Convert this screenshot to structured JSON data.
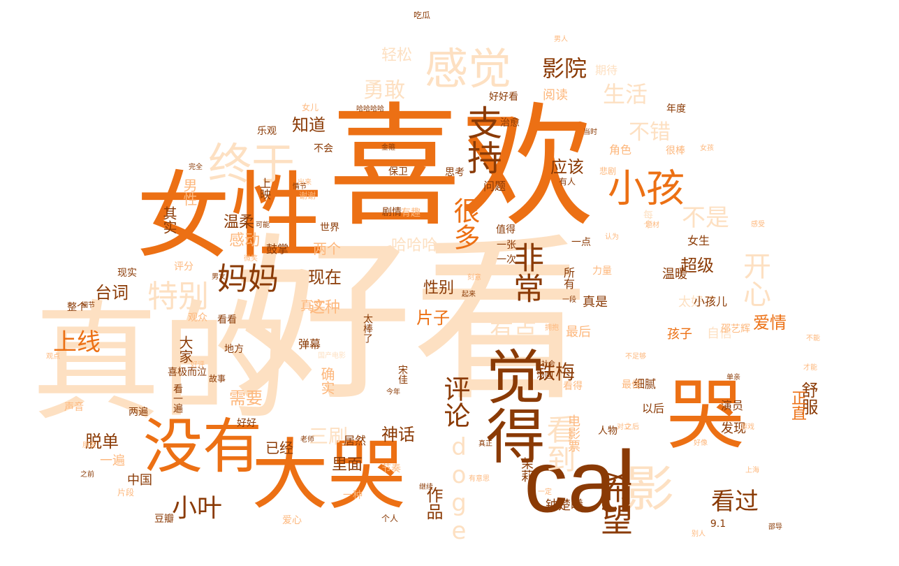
{
  "palette": {
    "background": "#ffffff",
    "deep_brown": "#8a3a05",
    "orange": "#ec7014",
    "light_orange": "#fdb77c",
    "peach": "#fde0c2",
    "pale": "#fff0e2"
  },
  "words": [
    {
      "text": "好看",
      "weight": 100,
      "color": "#fde0c2",
      "orient": "h"
    },
    {
      "text": "喜欢",
      "weight": 95,
      "color": "#ec7014",
      "orient": "h"
    },
    {
      "text": "真的",
      "weight": 92,
      "color": "#fde0c2",
      "orient": "h"
    },
    {
      "text": "女性",
      "weight": 80,
      "color": "#ec7014",
      "orient": "h"
    },
    {
      "text": "大哭",
      "weight": 78,
      "color": "#ec7014",
      "orient": "h"
    },
    {
      "text": "cal",
      "weight": 76,
      "color": "#8a3a05",
      "orient": "h"
    },
    {
      "text": "哭",
      "weight": 58,
      "color": "#ec7014",
      "orient": "v"
    },
    {
      "text": "没有",
      "weight": 60,
      "color": "#ec7014",
      "orient": "h"
    },
    {
      "text": "觉得",
      "weight": 60,
      "color": "#8a3a05",
      "orient": "v"
    },
    {
      "text": "感觉",
      "weight": 50,
      "color": "#fde0c2",
      "orient": "h"
    },
    {
      "text": "终于",
      "weight": 48,
      "color": "#fde0c2",
      "orient": "h"
    },
    {
      "text": "影",
      "weight": 48,
      "color": "#fde0c2",
      "orient": "h"
    },
    {
      "text": "小孩",
      "weight": 44,
      "color": "#ec7014",
      "orient": "h"
    },
    {
      "text": "支持",
      "weight": 42,
      "color": "#8a3a05",
      "orient": "v"
    },
    {
      "text": "妈妈",
      "weight": 40,
      "color": "#8a3a05",
      "orient": "h"
    },
    {
      "text": "特别",
      "weight": 40,
      "color": "#fde0c2",
      "orient": "h"
    },
    {
      "text": "开心",
      "weight": 38,
      "color": "#fde0c2",
      "orient": "v"
    },
    {
      "text": "非常",
      "weight": 38,
      "color": "#8a3a05",
      "orient": "v"
    },
    {
      "text": "希望",
      "weight": 38,
      "color": "#8a3a05",
      "orient": "v"
    },
    {
      "text": "看到",
      "weight": 36,
      "color": "#fde0c2",
      "orient": "v"
    },
    {
      "text": "很多",
      "weight": 34,
      "color": "#ec7014",
      "orient": "v"
    },
    {
      "text": "评论",
      "weight": 34,
      "color": "#8a3a05",
      "orient": "v"
    },
    {
      "text": "小叶",
      "weight": 32,
      "color": "#8a3a05",
      "orient": "h"
    },
    {
      "text": "看过",
      "weight": 30,
      "color": "#8a3a05",
      "orient": "h"
    },
    {
      "text": "生活",
      "weight": 30,
      "color": "#fde0c2",
      "orient": "h"
    },
    {
      "text": "影院",
      "weight": 28,
      "color": "#8a3a05",
      "orient": "h"
    },
    {
      "text": "不错",
      "weight": 28,
      "color": "#fde0c2",
      "orient": "h"
    },
    {
      "text": "不是",
      "weight": 28,
      "color": "#fde0c2",
      "orient": "h"
    },
    {
      "text": "勇敢",
      "weight": 28,
      "color": "#fde0c2",
      "orient": "h"
    },
    {
      "text": "有点",
      "weight": 28,
      "color": "#fde0c2",
      "orient": "h"
    },
    {
      "text": "上线",
      "weight": 28,
      "color": "#ec7014",
      "orient": "h"
    },
    {
      "text": "铁梅",
      "weight": 26,
      "color": "#8a3a05",
      "orient": "h"
    },
    {
      "text": "doge",
      "weight": 30,
      "color": "#fde0c2",
      "orient": "v"
    },
    {
      "text": "知道",
      "weight": 22,
      "color": "#8a3a05",
      "orient": "h"
    },
    {
      "text": "轻松",
      "weight": 22,
      "color": "#fde0c2",
      "orient": "h"
    },
    {
      "text": "应该",
      "weight": 22,
      "color": "#8a3a05",
      "orient": "h"
    },
    {
      "text": "现在",
      "weight": 22,
      "color": "#8a3a05",
      "orient": "h"
    },
    {
      "text": "台词",
      "weight": 22,
      "color": "#8a3a05",
      "orient": "h"
    },
    {
      "text": "需要",
      "weight": 22,
      "color": "#fdb77c",
      "orient": "h"
    },
    {
      "text": "神话",
      "weight": 22,
      "color": "#8a3a05",
      "orient": "h"
    },
    {
      "text": "哈哈哈",
      "weight": 20,
      "color": "#fde0c2",
      "orient": "h"
    },
    {
      "text": "温柔",
      "weight": 20,
      "color": "#8a3a05",
      "orient": "h"
    },
    {
      "text": "感动",
      "weight": 20,
      "color": "#fdb77c",
      "orient": "h"
    },
    {
      "text": "这种",
      "weight": 20,
      "color": "#fdb77c",
      "orient": "h"
    },
    {
      "text": "超级",
      "weight": 20,
      "color": "#8a3a05",
      "orient": "h"
    },
    {
      "text": "爱情",
      "weight": 20,
      "color": "#ec7014",
      "orient": "h"
    },
    {
      "text": "片子",
      "weight": 20,
      "color": "#ec7014",
      "orient": "h"
    },
    {
      "text": "性别",
      "weight": 20,
      "color": "#8a3a05",
      "orient": "h"
    },
    {
      "text": "脱单",
      "weight": 20,
      "color": "#8a3a05",
      "orient": "h"
    },
    {
      "text": "里面",
      "weight": 20,
      "color": "#8a3a05",
      "orient": "h"
    },
    {
      "text": "舒服",
      "weight": 20,
      "color": "#8a3a05",
      "orient": "v"
    },
    {
      "text": "正直",
      "weight": 20,
      "color": "#ec7014",
      "orient": "v"
    },
    {
      "text": "作品",
      "weight": 20,
      "color": "#8a3a05",
      "orient": "v"
    },
    {
      "text": "三刷",
      "weight": 24,
      "color": "#fde0c2",
      "orient": "h"
    },
    {
      "text": "上映",
      "weight": 16,
      "color": "#8a3a05",
      "orient": "v"
    },
    {
      "text": "真实",
      "weight": 16,
      "color": "#fdb77c",
      "orient": "h"
    },
    {
      "text": "温暖",
      "weight": 16,
      "color": "#8a3a05",
      "orient": "h"
    },
    {
      "text": "阅读",
      "weight": 18,
      "color": "#fdb77c",
      "orient": "h"
    },
    {
      "text": "其实",
      "weight": 18,
      "color": "#8a3a05",
      "orient": "v"
    },
    {
      "text": "男性",
      "weight": 18,
      "color": "#fdb77c",
      "orient": "v"
    },
    {
      "text": "大家",
      "weight": 18,
      "color": "#8a3a05",
      "orient": "v"
    },
    {
      "text": "确实",
      "weight": 18,
      "color": "#fdb77c",
      "orient": "v"
    },
    {
      "text": "电影票",
      "weight": 16,
      "color": "#fdb77c",
      "orient": "v"
    },
    {
      "text": "孩子",
      "weight": 16,
      "color": "#ec7014",
      "orient": "h"
    },
    {
      "text": "自信",
      "weight": 16,
      "color": "#fde0c2",
      "orient": "h"
    },
    {
      "text": "真是",
      "weight": 16,
      "color": "#8a3a05",
      "orient": "h"
    },
    {
      "text": "太好了",
      "weight": 16,
      "color": "#fde0c2",
      "orient": "h"
    },
    {
      "text": "最后",
      "weight": 16,
      "color": "#fdb77c",
      "orient": "h"
    },
    {
      "text": "中国",
      "weight": 14,
      "color": "#8a3a05",
      "orient": "h"
    },
    {
      "text": "茉莉",
      "weight": 16,
      "color": "#8a3a05",
      "orient": "v"
    },
    {
      "text": "钟楚曦",
      "weight": 16,
      "color": "#8a3a05",
      "orient": "h"
    },
    {
      "text": "居然",
      "weight": 16,
      "color": "#8a3a05",
      "orient": "h"
    },
    {
      "text": "弹幕",
      "weight": 14,
      "color": "#8a3a05",
      "orient": "h"
    },
    {
      "text": "已经",
      "weight": 16,
      "color": "#8a3a05",
      "orient": "h"
    },
    {
      "text": "鼓掌",
      "weight": 14,
      "color": "#8a3a05",
      "orient": "h"
    },
    {
      "text": "两个",
      "weight": 16,
      "color": "#fdb77c",
      "orient": "h"
    },
    {
      "text": "剧情",
      "weight": 12,
      "color": "#8a3a05",
      "orient": "h"
    },
    {
      "text": "有趣",
      "weight": 12,
      "color": "#fdb77c",
      "orient": "h"
    },
    {
      "text": "保卫",
      "weight": 12,
      "color": "#8a3a05",
      "orient": "h"
    },
    {
      "text": "思考",
      "weight": 12,
      "color": "#8a3a05",
      "orient": "h"
    },
    {
      "text": "问题",
      "weight": 14,
      "color": "#8a3a05",
      "orient": "h"
    },
    {
      "text": "好好看",
      "weight": 12,
      "color": "#8a3a05",
      "orient": "h"
    },
    {
      "text": "治愈",
      "weight": 12,
      "color": "#8a3a05",
      "orient": "h"
    },
    {
      "text": "期待",
      "weight": 14,
      "color": "#fde0c2",
      "orient": "h"
    },
    {
      "text": "年度",
      "weight": 12,
      "color": "#8a3a05",
      "orient": "h"
    },
    {
      "text": "角色",
      "weight": 14,
      "color": "#fdb77c",
      "orient": "h"
    },
    {
      "text": "很棒",
      "weight": 14,
      "color": "#fdb77c",
      "orient": "h"
    },
    {
      "text": "女生",
      "weight": 14,
      "color": "#8a3a05",
      "orient": "h"
    },
    {
      "text": "一点",
      "weight": 12,
      "color": "#8a3a05",
      "orient": "h"
    },
    {
      "text": "所有",
      "weight": 14,
      "color": "#8a3a05",
      "orient": "v"
    },
    {
      "text": "力量",
      "weight": 12,
      "color": "#fdb77c",
      "orient": "h"
    },
    {
      "text": "小孩儿",
      "weight": 14,
      "color": "#8a3a05",
      "orient": "h"
    },
    {
      "text": "细腻",
      "weight": 14,
      "color": "#8a3a05",
      "orient": "h"
    },
    {
      "text": "最佳",
      "weight": 12,
      "color": "#fdb77c",
      "orient": "h"
    },
    {
      "text": "以后",
      "weight": 14,
      "color": "#8a3a05",
      "orient": "h"
    },
    {
      "text": "演员",
      "weight": 14,
      "color": "#8a3a05",
      "orient": "h"
    },
    {
      "text": "发现",
      "weight": 14,
      "color": "#8a3a05",
      "orient": "h"
    },
    {
      "text": "人物",
      "weight": 12,
      "color": "#8a3a05",
      "orient": "h"
    },
    {
      "text": "看得",
      "weight": 12,
      "color": "#fdb77c",
      "orient": "h"
    },
    {
      "text": "汤圆",
      "weight": 10,
      "color": "#8a3a05",
      "orient": "h"
    },
    {
      "text": "宋佳",
      "weight": 12,
      "color": "#8a3a05",
      "orient": "v"
    },
    {
      "text": "太棒了",
      "weight": 12,
      "color": "#8a3a05",
      "orient": "v"
    },
    {
      "text": "节奏",
      "weight": 12,
      "color": "#fdb77c",
      "orient": "h"
    },
    {
      "text": "一种",
      "weight": 12,
      "color": "#fdb77c",
      "orient": "h"
    },
    {
      "text": "片段",
      "weight": 10,
      "color": "#fdb77c",
      "orient": "h"
    },
    {
      "text": "爱心",
      "weight": 12,
      "color": "#fdb77c",
      "orient": "h"
    },
    {
      "text": "个人",
      "weight": 10,
      "color": "#8a3a05",
      "orient": "h"
    },
    {
      "text": "豆瓣",
      "weight": 12,
      "color": "#8a3a05",
      "orient": "h"
    },
    {
      "text": "一遍",
      "weight": 14,
      "color": "#fdb77c",
      "orient": "h"
    },
    {
      "text": "两遍",
      "weight": 12,
      "color": "#8a3a05",
      "orient": "h"
    },
    {
      "text": "好好",
      "weight": 12,
      "color": "#8a3a05",
      "orient": "h"
    },
    {
      "text": "声音",
      "weight": 12,
      "color": "#fdb77c",
      "orient": "h"
    },
    {
      "text": "看一遍",
      "weight": 12,
      "color": "#8a3a05",
      "orient": "v"
    },
    {
      "text": "故事",
      "weight": 10,
      "color": "#8a3a05",
      "orient": "h"
    },
    {
      "text": "地方",
      "weight": 12,
      "color": "#8a3a05",
      "orient": "h"
    },
    {
      "text": "看看",
      "weight": 12,
      "color": "#8a3a05",
      "orient": "h"
    },
    {
      "text": "观众",
      "weight": 12,
      "color": "#fdb77c",
      "orient": "h"
    },
    {
      "text": "喜极而泣",
      "weight": 12,
      "color": "#8a3a05",
      "orient": "h"
    },
    {
      "text": "现实",
      "weight": 12,
      "color": "#8a3a05",
      "orient": "h"
    },
    {
      "text": "整个",
      "weight": 12,
      "color": "#8a3a05",
      "orient": "h"
    },
    {
      "text": "评分",
      "weight": 12,
      "color": "#fdb77c",
      "orient": "h"
    },
    {
      "text": "乐观",
      "weight": 12,
      "color": "#8a3a05",
      "orient": "h"
    },
    {
      "text": "不会",
      "weight": 12,
      "color": "#8a3a05",
      "orient": "h"
    },
    {
      "text": "谢谢",
      "weight": 10,
      "color": "#fdb77c",
      "orient": "h"
    },
    {
      "text": "世界",
      "weight": 12,
      "color": "#8a3a05",
      "orient": "h"
    },
    {
      "text": "一张",
      "weight": 12,
      "color": "#8a3a05",
      "orient": "h"
    },
    {
      "text": "一次",
      "weight": 12,
      "color": "#8a3a05",
      "orient": "h"
    },
    {
      "text": "值得",
      "weight": 12,
      "color": "#8a3a05",
      "orient": "h"
    },
    {
      "text": "每个",
      "weight": 12,
      "color": "#fde0c2",
      "orient": "v"
    },
    {
      "text": "有人",
      "weight": 10,
      "color": "#8a3a05",
      "orient": "h"
    },
    {
      "text": "悲剧",
      "weight": 10,
      "color": "#fdb77c",
      "orient": "h"
    },
    {
      "text": "吃瓜",
      "weight": 10,
      "color": "#8a3a05",
      "orient": "h"
    },
    {
      "text": "男人",
      "weight": 9,
      "color": "#fdb77c",
      "orient": "h"
    },
    {
      "text": "哈哈哈哈",
      "weight": 10,
      "color": "#8a3a05",
      "orient": "h"
    },
    {
      "text": "女儿",
      "weight": 9,
      "color": "#fdb77c",
      "orient": "h"
    },
    {
      "text": "女孩",
      "weight": 10,
      "color": "#fdb77c",
      "orient": "h"
    },
    {
      "text": "金箍",
      "weight": 9,
      "color": "#8a3a05",
      "orient": "h"
    },
    {
      "text": "邵艺辉",
      "weight": 9,
      "color": "#fdb77c",
      "orient": "h"
    },
    {
      "text": "9.1",
      "weight": 12,
      "color": "#8a3a05",
      "orient": "h"
    },
    {
      "text": "邵导",
      "weight": 12,
      "color": "#8a3a05",
      "orient": "h"
    },
    {
      "text": "别人",
      "weight": 9,
      "color": "#fdb77c",
      "orient": "h"
    },
    {
      "text": "感受",
      "weight": 9,
      "color": "#fdb77c",
      "orient": "h"
    },
    {
      "text": "一段",
      "weight": 9,
      "color": "#8a3a05",
      "orient": "h"
    },
    {
      "text": "刻意",
      "weight": 9,
      "color": "#fdb77c",
      "orient": "h"
    },
    {
      "text": "认为",
      "weight": 9,
      "color": "#fdb77c",
      "orient": "h"
    },
    {
      "text": "拥抱",
      "weight": 9,
      "color": "#fdb77c",
      "orient": "h"
    },
    {
      "text": "好评",
      "weight": 9,
      "color": "#fdb77c",
      "orient": "h"
    },
    {
      "text": "男女",
      "weight": 9,
      "color": "#8a3a05",
      "orient": "h"
    },
    {
      "text": "细节",
      "weight": 9,
      "color": "#8a3a05",
      "orient": "h"
    },
    {
      "text": "对立",
      "weight": 9,
      "color": "#fdb77c",
      "orient": "h"
    },
    {
      "text": "老师",
      "weight": 9,
      "color": "#8a3a05",
      "orient": "h"
    },
    {
      "text": "真正",
      "weight": 9,
      "color": "#8a3a05",
      "orient": "h"
    },
    {
      "text": "今年",
      "weight": 10,
      "color": "#8a3a05",
      "orient": "h"
    },
    {
      "text": "社会",
      "weight": 9,
      "color": "#8a3a05",
      "orient": "h"
    },
    {
      "text": "才能",
      "weight": 9,
      "color": "#fdb77c",
      "orient": "h"
    },
    {
      "text": "不能",
      "weight": 9,
      "color": "#fdb77c",
      "orient": "h"
    },
    {
      "text": "单亲",
      "weight": 9,
      "color": "#8a3a05",
      "orient": "h"
    },
    {
      "text": "游戏",
      "weight": 9,
      "color": "#fdb77c",
      "orient": "h"
    },
    {
      "text": "不足够",
      "weight": 9,
      "color": "#fdb77c",
      "orient": "h"
    },
    {
      "text": "国产电影",
      "weight": 9,
      "color": "#fde0c2",
      "orient": "h"
    },
    {
      "text": "情节",
      "weight": 9,
      "color": "#8a3a05",
      "orient": "h"
    },
    {
      "text": "出来",
      "weight": 10,
      "color": "#fdb77c",
      "orient": "h"
    },
    {
      "text": "完全",
      "weight": 9,
      "color": "#8a3a05",
      "orient": "h"
    },
    {
      "text": "可能",
      "weight": 9,
      "color": "#8a3a05",
      "orient": "h"
    },
    {
      "text": "微笑",
      "weight": 9,
      "color": "#fdb77c",
      "orient": "h"
    },
    {
      "text": "题材",
      "weight": 9,
      "color": "#fdb77c",
      "orient": "h"
    },
    {
      "text": "之后",
      "weight": 9,
      "color": "#fdb77c",
      "orient": "h"
    },
    {
      "text": "之前",
      "weight": 9,
      "color": "#8a3a05",
      "orient": "h"
    },
    {
      "text": "朋友",
      "weight": 9,
      "color": "#fdb77c",
      "orient": "h"
    },
    {
      "text": "观点",
      "weight": 9,
      "color": "#fdb77c",
      "orient": "h"
    },
    {
      "text": "继续",
      "weight": 9,
      "color": "#8a3a05",
      "orient": "h"
    },
    {
      "text": "一定",
      "weight": 9,
      "color": "#fdb77c",
      "orient": "h"
    },
    {
      "text": "上海",
      "weight": 9,
      "color": "#fdb77c",
      "orient": "h"
    },
    {
      "text": "好像",
      "weight": 9,
      "color": "#fdb77c",
      "orient": "h"
    },
    {
      "text": "有意思",
      "weight": 10,
      "color": "#fdb77c",
      "orient": "h"
    },
    {
      "text": "起来",
      "weight": 9,
      "color": "#8a3a05",
      "orient": "h"
    },
    {
      "text": "当时",
      "weight": 9,
      "color": "#8a3a05",
      "orient": "h"
    },
    {
      "text": "不要",
      "weight": 9,
      "color": "#fde0c2",
      "orient": "h"
    }
  ]
}
